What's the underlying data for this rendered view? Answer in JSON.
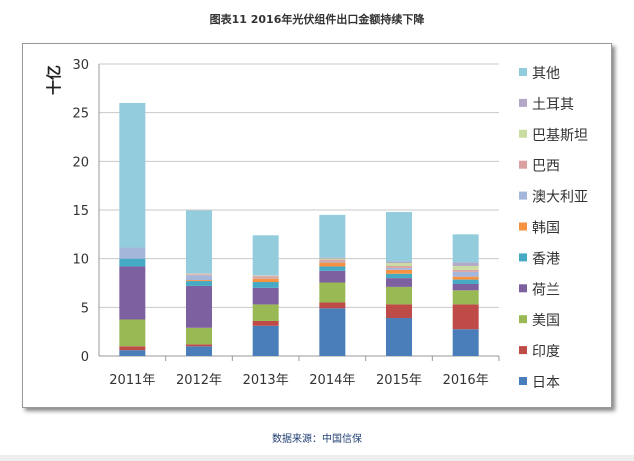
{
  "chart_data": {
    "type": "bar",
    "stacked": true,
    "title": "图表11  2016年光伏组件出口金额持续下降",
    "ylabel": "十亿",
    "xlabel": "",
    "ylim": [
      0,
      30
    ],
    "yticks": [
      0,
      5,
      10,
      15,
      20,
      25,
      30
    ],
    "grid": true,
    "legend_position": "right",
    "categories": [
      "2011年",
      "2012年",
      "2013年",
      "2014年",
      "2015年",
      "2016年"
    ],
    "series": [
      {
        "name": "日本",
        "color": "#4a7ebb",
        "values": [
          0.6,
          1.0,
          3.1,
          4.9,
          3.9,
          2.75
        ]
      },
      {
        "name": "印度",
        "color": "#be4b48",
        "values": [
          0.4,
          0.2,
          0.5,
          0.6,
          1.4,
          2.55
        ]
      },
      {
        "name": "美国",
        "color": "#98b954",
        "values": [
          2.75,
          1.7,
          1.7,
          2.05,
          1.8,
          1.45
        ]
      },
      {
        "name": "荷兰",
        "color": "#7d60a0",
        "values": [
          5.45,
          4.3,
          1.7,
          1.2,
          0.9,
          0.65
        ]
      },
      {
        "name": "香港",
        "color": "#46aac5",
        "values": [
          0.8,
          0.5,
          0.6,
          0.45,
          0.45,
          0.45
        ]
      },
      {
        "name": "韩国",
        "color": "#f69240",
        "values": [
          0.0,
          0.1,
          0.35,
          0.4,
          0.4,
          0.3
        ]
      },
      {
        "name": "澳大利亚",
        "color": "#a5b6db",
        "values": [
          1.15,
          0.5,
          0.05,
          0.1,
          0.2,
          0.5
        ]
      },
      {
        "name": "巴西",
        "color": "#dba1a0",
        "values": [
          0.0,
          0.1,
          0.2,
          0.2,
          0.2,
          0.2
        ]
      },
      {
        "name": "巴基斯坦",
        "color": "#c9dca2",
        "values": [
          0.0,
          0.05,
          0.05,
          0.1,
          0.3,
          0.4
        ]
      },
      {
        "name": "土耳其",
        "color": "#b3a9c6",
        "values": [
          0.0,
          0.05,
          0.05,
          0.1,
          0.15,
          0.35
        ]
      },
      {
        "name": "其他",
        "color": "#93cddd",
        "values": [
          14.85,
          6.45,
          4.1,
          4.4,
          5.1,
          2.9
        ]
      }
    ]
  },
  "source": "数据来源：中国信保"
}
